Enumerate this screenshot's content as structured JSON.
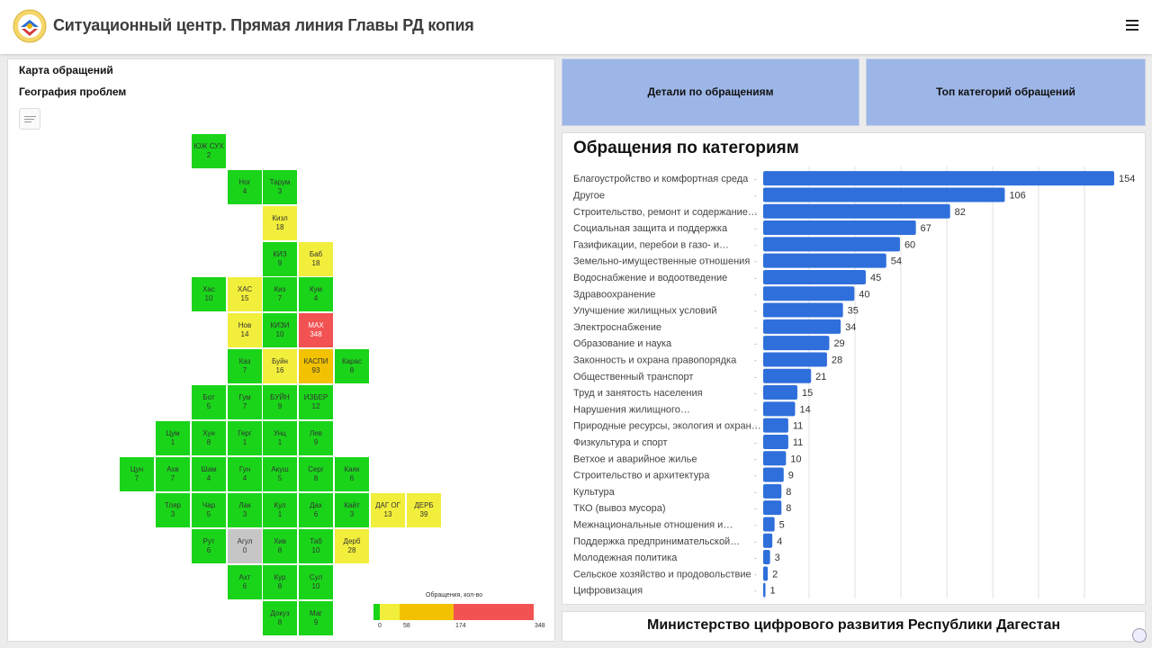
{
  "header": {
    "title": "Ситуационный центр. Прямая линия Главы РД копия"
  },
  "map": {
    "title": "Карта обращений",
    "subtitle": "География проблем",
    "tiles": [
      {
        "label": "ЮЖ СУХ",
        "value": "2",
        "c": "g"
      },
      {
        "label": "Ног",
        "value": "4",
        "c": "g"
      },
      {
        "label": "Тарум",
        "value": "3",
        "c": "g"
      },
      {
        "label": "Кизл",
        "value": "18",
        "c": "y"
      },
      {
        "label": "КИЗ",
        "value": "9",
        "c": "g"
      },
      {
        "label": "Баб",
        "value": "18",
        "c": "y"
      },
      {
        "label": "Хас",
        "value": "10",
        "c": "g"
      },
      {
        "label": "ХАС",
        "value": "15",
        "c": "y"
      },
      {
        "label": "Киз",
        "value": "7",
        "c": "g"
      },
      {
        "label": "Кум",
        "value": "4",
        "c": "g"
      },
      {
        "label": "Нов",
        "value": "14",
        "c": "y"
      },
      {
        "label": "КИЗИ",
        "value": "10",
        "c": "g"
      },
      {
        "label": "МАХ",
        "value": "348",
        "c": "r"
      },
      {
        "label": "Каз",
        "value": "7",
        "c": "g"
      },
      {
        "label": "Буйн",
        "value": "16",
        "c": "y"
      },
      {
        "label": "КАСПИ",
        "value": "93",
        "c": "o"
      },
      {
        "label": "Карас",
        "value": "8",
        "c": "g"
      },
      {
        "label": "Бот",
        "value": "5",
        "c": "g"
      },
      {
        "label": "Гум",
        "value": "7",
        "c": "g"
      },
      {
        "label": "БУЙН",
        "value": "9",
        "c": "g"
      },
      {
        "label": "ИЗБЕР",
        "value": "12",
        "c": "g"
      },
      {
        "label": "Цум",
        "value": "1",
        "c": "g"
      },
      {
        "label": "Хун",
        "value": "8",
        "c": "g"
      },
      {
        "label": "Герг",
        "value": "1",
        "c": "g"
      },
      {
        "label": "Унц",
        "value": "1",
        "c": "g"
      },
      {
        "label": "Лев",
        "value": "9",
        "c": "g"
      },
      {
        "label": "Цун",
        "value": "7",
        "c": "g"
      },
      {
        "label": "Ахв",
        "value": "7",
        "c": "g"
      },
      {
        "label": "Шам",
        "value": "4",
        "c": "g"
      },
      {
        "label": "Гун",
        "value": "4",
        "c": "g"
      },
      {
        "label": "Акуш",
        "value": "5",
        "c": "g"
      },
      {
        "label": "Серг",
        "value": "8",
        "c": "g"
      },
      {
        "label": "Каяк",
        "value": "6",
        "c": "g"
      },
      {
        "label": "Тляр",
        "value": "3",
        "c": "g"
      },
      {
        "label": "Чар",
        "value": "5",
        "c": "g"
      },
      {
        "label": "Лак",
        "value": "3",
        "c": "g"
      },
      {
        "label": "Кул",
        "value": "1",
        "c": "g"
      },
      {
        "label": "Дах",
        "value": "6",
        "c": "g"
      },
      {
        "label": "Кайт",
        "value": "3",
        "c": "g"
      },
      {
        "label": "ДАГ ОГ",
        "value": "13",
        "c": "y"
      },
      {
        "label": "ДЕРБ",
        "value": "39",
        "c": "y"
      },
      {
        "label": "Рут",
        "value": "6",
        "c": "g"
      },
      {
        "label": "Агул",
        "value": "0",
        "c": "gr"
      },
      {
        "label": "Хив",
        "value": "8",
        "c": "g"
      },
      {
        "label": "Таб",
        "value": "10",
        "c": "g"
      },
      {
        "label": "Дерб",
        "value": "28",
        "c": "y"
      },
      {
        "label": "Ахт",
        "value": "6",
        "c": "g"
      },
      {
        "label": "Кур",
        "value": "8",
        "c": "g"
      },
      {
        "label": "Сул",
        "value": "10",
        "c": "g"
      },
      {
        "label": "Докуз",
        "value": "8",
        "c": "g"
      },
      {
        "label": "Маг",
        "value": "9",
        "c": "g"
      }
    ],
    "legend": {
      "caption": "Обращения, кол-во",
      "ticks": [
        "0",
        "58",
        "174",
        "348"
      ],
      "colors": [
        "#1ad41a",
        "#f2ee3c",
        "#f2c200",
        "#f25252"
      ]
    }
  },
  "buttons": {
    "details": "Детали по обращениям",
    "top": "Топ категорий обращений"
  },
  "chart_title": "Обращения по категориям",
  "chart_data": {
    "type": "bar",
    "orientation": "horizontal",
    "bar_color": "#2f6fdb",
    "xlim": [
      0,
      154
    ],
    "grid": true,
    "categories": [
      "Благоустройство и комфортная среда",
      "Другое",
      "Строительство, ремонт и содержание…",
      "Социальная защита и поддержка",
      "Газификации, перебои в газо- и…",
      "Земельно-имущественные отношения",
      "Водоснабжение и водоотведение",
      "Здравоохранение",
      "Улучшение жилищных условий",
      "Электроснабжение",
      "Образование и наука",
      "Законность и охрана правопорядка",
      "Общественный транспорт",
      "Труд и занятость населения",
      "Нарушения жилищного…",
      "Природные ресурсы, экология и охран…",
      "Физкультура и спорт",
      "Ветхое и аварийное жилье",
      "Строительство и архитектура",
      "Культура",
      "ТКО (вывоз мусора)",
      "Межнациональные отношения и…",
      "Поддержка предпринимательской…",
      "Молодежная политика",
      "Сельское хозяйство и продовольствие",
      "Цифровизация"
    ],
    "values": [
      154,
      106,
      82,
      67,
      60,
      54,
      45,
      40,
      35,
      34,
      29,
      28,
      21,
      15,
      14,
      11,
      11,
      10,
      9,
      8,
      8,
      5,
      4,
      3,
      2,
      1
    ]
  },
  "footer": {
    "text": "Министерство цифрового развития Республики Дагестан"
  }
}
